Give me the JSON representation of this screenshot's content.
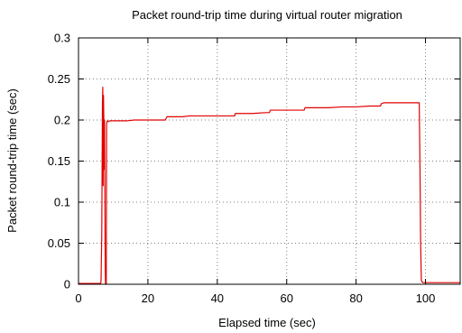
{
  "chart_data": {
    "type": "line",
    "title": "Packet round-trip time during virtual router migration",
    "xlabel": "Elapsed time (sec)",
    "ylabel": "Packet round-trip time (sec)",
    "xlim": [
      0,
      110
    ],
    "ylim": [
      0,
      0.3
    ],
    "xticks": [
      0,
      20,
      40,
      60,
      80,
      100
    ],
    "yticks": [
      0,
      0.05,
      0.1,
      0.15,
      0.2,
      0.25,
      0.3
    ],
    "xtick_labels": [
      "0",
      "20",
      "40",
      "60",
      "80",
      "100"
    ],
    "ytick_labels": [
      "0",
      "0.05",
      "0.1",
      "0.15",
      "0.2",
      "0.25",
      "0.3"
    ],
    "grid": true,
    "legend": "none",
    "colors": {
      "series": "#e00000"
    },
    "series": [
      {
        "color": "#e00000",
        "x": [
          0,
          6.4,
          6.5,
          6.7,
          6.9,
          7.0,
          7.1,
          7.2,
          7.3,
          7.4,
          7.5,
          7.7,
          7.8,
          8.0,
          8.1,
          8.2,
          8.4,
          8.6,
          9,
          12,
          14,
          16,
          18,
          20,
          22,
          24,
          25,
          25.5,
          28,
          30,
          32,
          35,
          38,
          40,
          42,
          44,
          45,
          45.2,
          46,
          50,
          54,
          55,
          55.3,
          58,
          62,
          65,
          65.3,
          66,
          68,
          72,
          76,
          78,
          80,
          84,
          87,
          87.3,
          88,
          90,
          94,
          97,
          98.2,
          98.4,
          98.6,
          98.8,
          99,
          99.3,
          100,
          104,
          108,
          110
        ],
        "y": [
          0.001,
          0.001,
          0.005,
          0.06,
          0.22,
          0.24,
          0.12,
          0.23,
          0.2,
          0.14,
          0.2,
          0.02,
          0.0,
          0.0,
          0.195,
          0.198,
          0.199,
          0.198,
          0.199,
          0.199,
          0.199,
          0.2,
          0.2,
          0.2,
          0.2,
          0.2,
          0.2,
          0.204,
          0.204,
          0.204,
          0.205,
          0.205,
          0.205,
          0.205,
          0.205,
          0.205,
          0.205,
          0.208,
          0.208,
          0.208,
          0.209,
          0.209,
          0.212,
          0.212,
          0.212,
          0.212,
          0.215,
          0.215,
          0.215,
          0.215,
          0.216,
          0.216,
          0.216,
          0.217,
          0.217,
          0.22,
          0.221,
          0.221,
          0.221,
          0.221,
          0.221,
          0.15,
          0.05,
          0.005,
          0.003,
          0.002,
          0.002,
          0.002,
          0.002,
          0.002
        ]
      }
    ]
  }
}
